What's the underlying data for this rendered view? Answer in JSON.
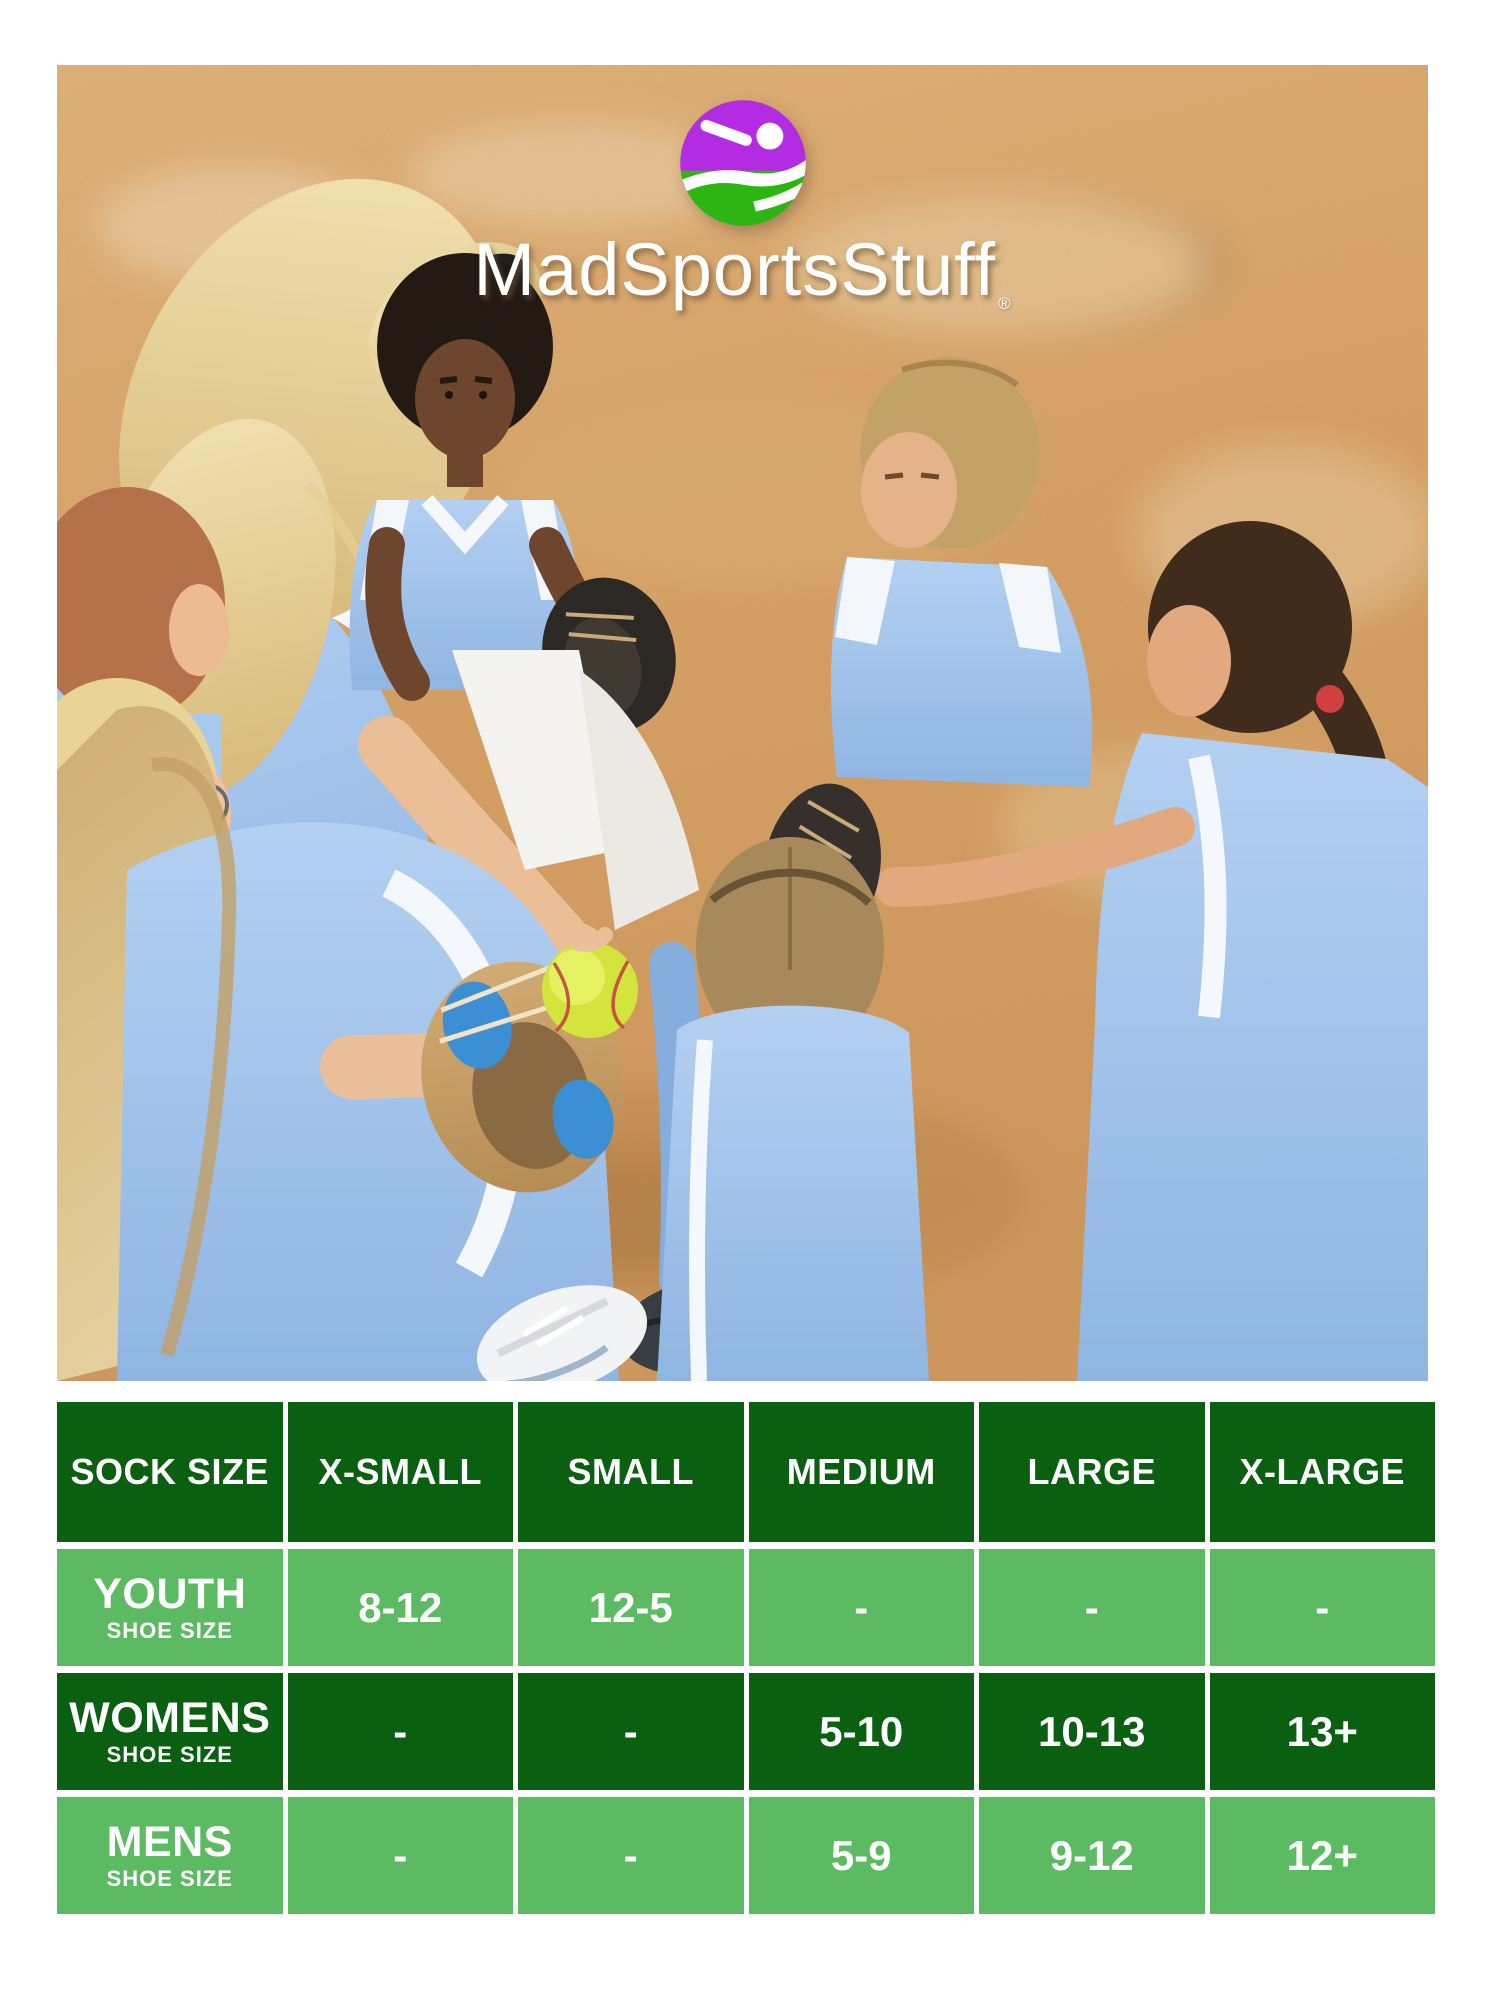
{
  "logo": {
    "brand": "MadSportsStuff",
    "registered": "®",
    "icon": "swinging-player-icon",
    "icon_top_color": "#b32ce4",
    "icon_bottom_color": "#2db514"
  },
  "photo": {
    "description": "Girls softball team in light blue uniforms huddled with their coach on infield dirt; a yellow softball is held over an open glove"
  },
  "chart_data": {
    "type": "table",
    "header": [
      "SOCK SIZE",
      "X-SMALL",
      "SMALL",
      "MEDIUM",
      "LARGE",
      "X-LARGE"
    ],
    "rows": [
      {
        "label": "YOUTH",
        "sublabel": "SHOE SIZE",
        "values": [
          "8-12",
          "12-5",
          "-",
          "-",
          "-"
        ]
      },
      {
        "label": "WOMENS",
        "sublabel": "SHOE SIZE",
        "values": [
          "-",
          "-",
          "5-10",
          "10-13",
          "13+"
        ]
      },
      {
        "label": "MENS",
        "sublabel": "SHOE SIZE",
        "values": [
          "-",
          "-",
          "5-9",
          "9-12",
          "12+"
        ]
      }
    ],
    "colors": {
      "header_bg": "#0a5f10",
      "alt_row_bg": "#5cbb62",
      "text": "#ffffff",
      "grid_gap": "#ffffff"
    }
  }
}
